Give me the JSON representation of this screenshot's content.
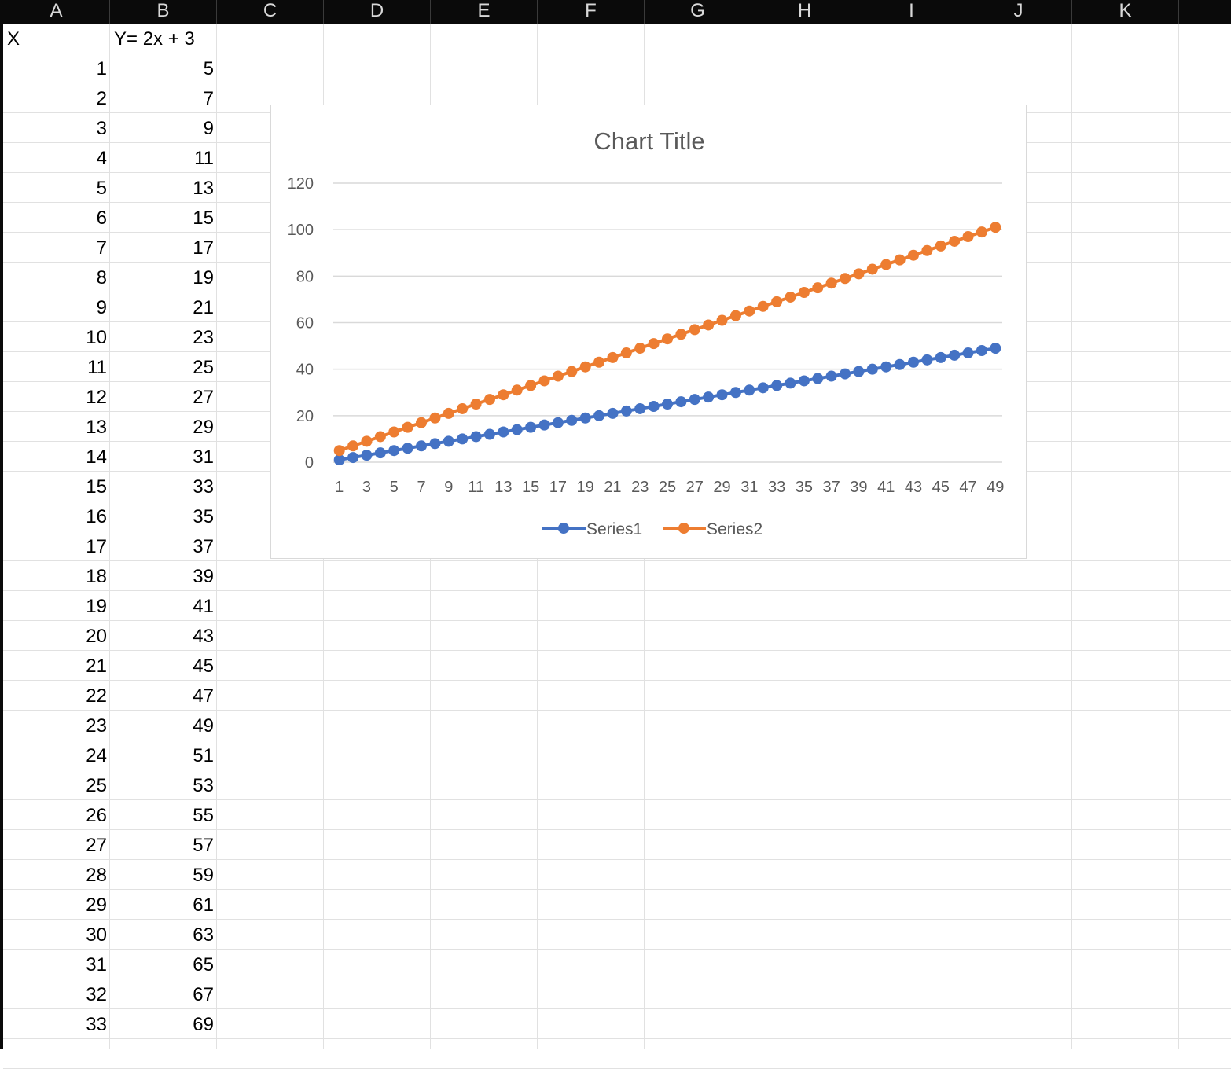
{
  "columns": [
    "A",
    "B",
    "C",
    "D",
    "E",
    "F",
    "G",
    "H",
    "I",
    "J",
    "K"
  ],
  "headers": {
    "A": "X",
    "B": "Y= 2x + 3"
  },
  "rows": [
    [
      1,
      5
    ],
    [
      2,
      7
    ],
    [
      3,
      9
    ],
    [
      4,
      11
    ],
    [
      5,
      13
    ],
    [
      6,
      15
    ],
    [
      7,
      17
    ],
    [
      8,
      19
    ],
    [
      9,
      21
    ],
    [
      10,
      23
    ],
    [
      11,
      25
    ],
    [
      12,
      27
    ],
    [
      13,
      29
    ],
    [
      14,
      31
    ],
    [
      15,
      33
    ],
    [
      16,
      35
    ],
    [
      17,
      37
    ],
    [
      18,
      39
    ],
    [
      19,
      41
    ],
    [
      20,
      43
    ],
    [
      21,
      45
    ],
    [
      22,
      47
    ],
    [
      23,
      49
    ],
    [
      24,
      51
    ],
    [
      25,
      53
    ],
    [
      26,
      55
    ],
    [
      27,
      57
    ],
    [
      28,
      59
    ],
    [
      29,
      61
    ],
    [
      30,
      63
    ],
    [
      31,
      65
    ],
    [
      32,
      67
    ],
    [
      33,
      69
    ]
  ],
  "chart_data": {
    "type": "line",
    "title": "Chart Title",
    "xlabel": "",
    "ylabel": "",
    "ylim": [
      0,
      120
    ],
    "yticks": [
      0,
      20,
      40,
      60,
      80,
      100,
      120
    ],
    "categories": [
      1,
      2,
      3,
      4,
      5,
      6,
      7,
      8,
      9,
      10,
      11,
      12,
      13,
      14,
      15,
      16,
      17,
      18,
      19,
      20,
      21,
      22,
      23,
      24,
      25,
      26,
      27,
      28,
      29,
      30,
      31,
      32,
      33,
      34,
      35,
      36,
      37,
      38,
      39,
      40,
      41,
      42,
      43,
      44,
      45,
      46,
      47,
      48,
      49
    ],
    "x_tick_labels": [
      "1",
      "3",
      "5",
      "7",
      "9",
      "11",
      "13",
      "15",
      "17",
      "19",
      "21",
      "23",
      "25",
      "27",
      "29",
      "31",
      "33",
      "35",
      "37",
      "39",
      "41",
      "43",
      "45",
      "47",
      "49"
    ],
    "grid": true,
    "legend": "bottom",
    "series": [
      {
        "name": "Series1",
        "color": "#4472C4",
        "values": [
          1,
          2,
          3,
          4,
          5,
          6,
          7,
          8,
          9,
          10,
          11,
          12,
          13,
          14,
          15,
          16,
          17,
          18,
          19,
          20,
          21,
          22,
          23,
          24,
          25,
          26,
          27,
          28,
          29,
          30,
          31,
          32,
          33,
          34,
          35,
          36,
          37,
          38,
          39,
          40,
          41,
          42,
          43,
          44,
          45,
          46,
          47,
          48,
          49
        ]
      },
      {
        "name": "Series2",
        "color": "#ED7D31",
        "values": [
          5,
          7,
          9,
          11,
          13,
          15,
          17,
          19,
          21,
          23,
          25,
          27,
          29,
          31,
          33,
          35,
          37,
          39,
          41,
          43,
          45,
          47,
          49,
          51,
          53,
          55,
          57,
          59,
          61,
          63,
          65,
          67,
          69,
          71,
          73,
          75,
          77,
          79,
          81,
          83,
          85,
          87,
          89,
          91,
          93,
          95,
          97,
          99,
          101
        ]
      }
    ]
  }
}
